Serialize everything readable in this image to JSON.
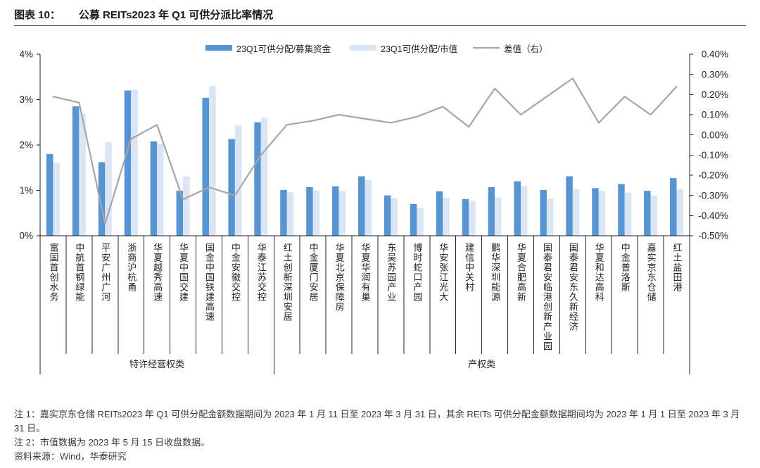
{
  "figure": {
    "label": "图表 10："
  },
  "chart_data": {
    "type": "bar",
    "title": "公募 REITs2023 年 Q1 可供分派比率情况",
    "groups": [
      {
        "label": "特许经营权类",
        "categories": [
          "富国首创水务",
          "中航首钢绿能",
          "平安广州广河",
          "浙商沪杭甬",
          "华夏越秀高速",
          "华夏中国交建",
          "国金中国铁建高速",
          "中金安徽交控",
          "华泰江苏交控"
        ]
      },
      {
        "label": "产权类",
        "categories": [
          "红土创新深圳安居",
          "中金厦门安居",
          "华夏北京保障房",
          "华夏华润有巢",
          "东吴苏园产业",
          "博时蛇口产园",
          "华安张江光大",
          "建信中关村",
          "鹏华深圳能源",
          "华夏合肥高新",
          "国泰君安临港创新产业园",
          "国泰君安东久新经济",
          "华夏和达高科",
          "中金普洛斯",
          "嘉实京东仓储",
          "红土盐田港"
        ]
      }
    ],
    "series": [
      {
        "name": "23Q1可供分配/募集资金",
        "type": "bar",
        "axis": "left",
        "color": "#5694d2",
        "values": [
          1.8,
          2.85,
          1.62,
          3.2,
          2.08,
          0.99,
          3.04,
          2.13,
          2.5,
          1.01,
          1.07,
          1.09,
          1.31,
          0.89,
          0.7,
          0.98,
          0.81,
          1.07,
          1.2,
          1.01,
          1.31,
          1.05,
          1.14,
          0.99,
          1.27
        ]
      },
      {
        "name": "23Q1可供分配/市值",
        "type": "bar",
        "axis": "left",
        "color": "#dae6f4",
        "values": [
          1.61,
          2.69,
          2.06,
          3.22,
          2.03,
          1.31,
          3.3,
          2.43,
          2.6,
          0.96,
          1.0,
          0.99,
          1.23,
          0.83,
          0.61,
          0.84,
          0.77,
          0.84,
          1.1,
          0.82,
          1.03,
          0.99,
          0.95,
          0.89,
          1.03
        ]
      },
      {
        "name": "差值（右）",
        "type": "line",
        "axis": "right",
        "color": "#a6a6a6",
        "values": [
          0.19,
          0.16,
          -0.44,
          -0.02,
          0.05,
          -0.32,
          -0.26,
          -0.3,
          -0.1,
          0.05,
          0.07,
          0.1,
          0.08,
          0.06,
          0.09,
          0.14,
          0.04,
          0.23,
          0.1,
          0.19,
          0.28,
          0.06,
          0.19,
          0.1,
          0.24
        ]
      }
    ],
    "ylim": [
      0,
      4
    ],
    "y_ticks": [
      "0%",
      "1%",
      "2%",
      "3%",
      "4%"
    ],
    "y2lim": [
      -0.5,
      0.4
    ],
    "y2_ticks": [
      "-0.50%",
      "-0.40%",
      "-0.30%",
      "-0.20%",
      "-0.10%",
      "0.00%",
      "0.10%",
      "0.20%",
      "0.30%",
      "0.40%"
    ],
    "grid": false,
    "legend_position": "top"
  },
  "notes": [
    "注 1：嘉实京东仓储 REITs2023 年 Q1 可供分配金额数据期间为 2023 年 1 月 11 日至 2023 年 3 月 31 日，其余 REITs 可供分配金额数据期间均为 2023 年 1 月 1 日至 2023 年 3 月 31 日。",
    "注 2：市值数据为 2023 年 5 月 15 日收盘数据。"
  ],
  "source": "资料来源：Wind，华泰研究"
}
